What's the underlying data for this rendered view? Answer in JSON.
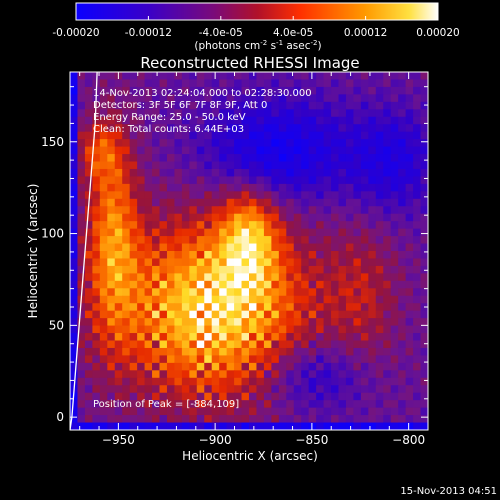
{
  "window": {
    "timestamp": "15-Nov-2013 04:51"
  },
  "colorbar": {
    "ticks": [
      "-0.00020",
      "-0.00012",
      "-4.0e-05",
      "4.0e-05",
      "0.00012",
      "0.00020"
    ],
    "tick_values": [
      -0.0002,
      -0.00012,
      -4e-05,
      4e-05,
      0.00012,
      0.0002
    ],
    "range": [
      -0.0002,
      0.0002
    ],
    "units_line1": "(photons cm",
    "units_sup1": "-2",
    "units_mid": " s",
    "units_sup2": "-1",
    "units_mid2": " asec",
    "units_sup3": "-2",
    "units_end": ")"
  },
  "chart_data": {
    "type": "heatmap",
    "title": "Reconstructed RHESSI Image",
    "xlabel": "Heliocentric X (arcsec)",
    "ylabel": "Heliocentric Y (arcsec)",
    "xlim": [
      -975,
      -790
    ],
    "ylim": [
      -7,
      188
    ],
    "xticks": [
      -950,
      -900,
      -850,
      -800
    ],
    "xtick_labels": [
      "−950",
      "−900",
      "−850",
      "−800"
    ],
    "yticks": [
      0,
      50,
      100,
      150
    ],
    "ytick_labels": [
      "0",
      "50",
      "100",
      "150"
    ],
    "annotations": [
      "14-Nov-2013 02:24:04.000 to 02:28:30.000",
      "Detectors: 3F 5F 6F 7F 8F 9F, Att 0",
      "Energy Range: 25.0 - 50.0 keV",
      "Clean:    Total counts: 6.44E+03"
    ],
    "peak_label": "Position of Peak = [-884,109]",
    "peak": [
      -884,
      109
    ],
    "limb_curve": [
      [
        -961,
        188
      ],
      [
        -962,
        160
      ],
      [
        -965,
        120
      ],
      [
        -968,
        80
      ],
      [
        -971,
        40
      ],
      [
        -974,
        0
      ],
      [
        -975,
        -7
      ]
    ],
    "colormap": [
      "#0000ff",
      "#5b3aa0",
      "#a1187e",
      "#ff2000",
      "#ffa000",
      "#ffff80",
      "#ffffff"
    ]
  }
}
